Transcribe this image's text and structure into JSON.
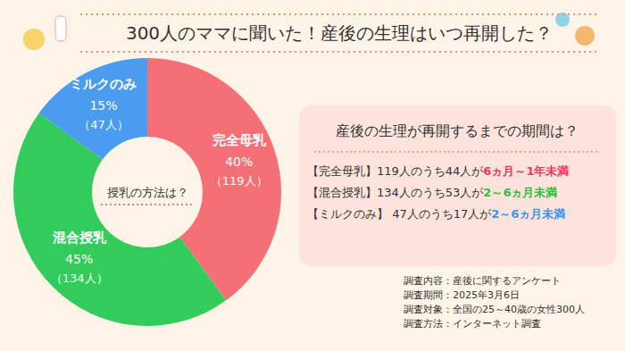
{
  "chart_data": {
    "type": "pie",
    "title": "300人のママに聞いた！産後の生理はいつ再開した？",
    "center_label": "授乳の方法は？",
    "categories": [
      "完全母乳",
      "混合授乳",
      "ミルクのみ"
    ],
    "values": [
      40,
      45,
      15
    ],
    "value_labels": [
      "40%",
      "45%",
      "15%"
    ],
    "count_labels": [
      "（119人）",
      "（134人）",
      "（47人）"
    ],
    "colors": [
      "#f47076",
      "#33cc5c",
      "#4a9cf0"
    ],
    "data_labels": true,
    "side_panel": {
      "title": "産後の生理が再開するまでの期間は？",
      "rows": [
        {
          "label": "【完全母乳】",
          "text": "119人のうち44人が",
          "period": "6ヵ月～1年未満",
          "color": "#f2385c"
        },
        {
          "label": "【混合授乳】",
          "text": "134人のうち53人が",
          "period": "2～6ヵ月未満",
          "color": "#2fbf3a"
        },
        {
          "label": "【ミルクのみ】",
          "text": " 47人のうち17人が",
          "period": "2～6ヵ月未満",
          "color": "#3a95ee"
        }
      ]
    },
    "notes": [
      "調査内容：産後に関するアンケート",
      "調査期間：2025年3月6日",
      "調査対象：全国の25～40歳の女性300人",
      "調査方法：インターネット調査"
    ]
  }
}
